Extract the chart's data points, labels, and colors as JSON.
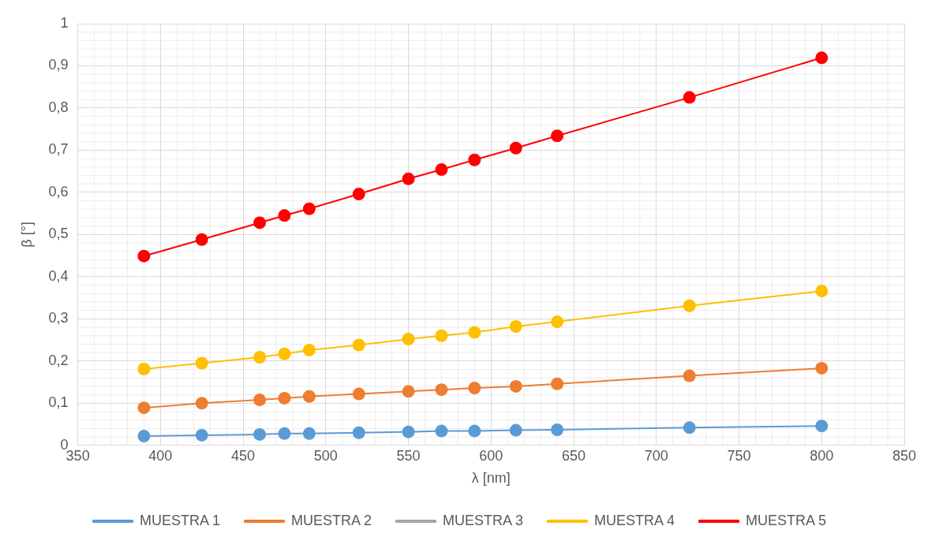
{
  "chart_data": {
    "type": "line",
    "xlabel": "λ [nm]",
    "ylabel": "β [°]",
    "x": [
      390,
      425,
      460,
      475,
      490,
      520,
      550,
      570,
      590,
      615,
      640,
      720,
      800
    ],
    "series": [
      {
        "name": "MUESTRA 1",
        "color": "#5b9bd5",
        "values": [
          0.022,
          0.024,
          0.026,
          0.028,
          0.028,
          0.03,
          0.032,
          0.034,
          0.034,
          0.036,
          0.037,
          0.042,
          0.046
        ]
      },
      {
        "name": "MUESTRA 2",
        "color": "#ed7d31",
        "values": [
          0.089,
          0.1,
          0.108,
          0.112,
          0.116,
          0.122,
          0.128,
          0.132,
          0.136,
          0.14,
          0.146,
          0.165,
          0.183
        ]
      },
      {
        "name": "MUESTRA 3",
        "color": "#a5a5a5",
        "values": [
          null,
          null,
          null,
          null,
          null,
          null,
          null,
          null,
          null,
          null,
          null,
          null,
          null
        ]
      },
      {
        "name": "MUESTRA 4",
        "color": "#ffc000",
        "values": [
          0.181,
          0.195,
          0.209,
          0.217,
          0.226,
          0.238,
          0.252,
          0.26,
          0.268,
          0.282,
          0.293,
          0.331,
          0.366
        ]
      },
      {
        "name": "MUESTRA 5",
        "color": "#ff0000",
        "values": [
          0.449,
          0.488,
          0.528,
          0.545,
          0.561,
          0.596,
          0.632,
          0.654,
          0.677,
          0.705,
          0.734,
          0.825,
          0.919
        ]
      }
    ],
    "xlim": [
      350,
      850
    ],
    "xticks": [
      350,
      400,
      450,
      500,
      550,
      600,
      650,
      700,
      750,
      800,
      850
    ],
    "ylim": [
      0,
      1
    ],
    "yticks": [
      0,
      {
        "value": 0.1,
        "label": "0,1"
      },
      {
        "value": 0.2,
        "label": "0,2"
      },
      {
        "value": 0.3,
        "label": "0,3"
      },
      {
        "value": 0.4,
        "label": "0,4"
      },
      {
        "value": 0.5,
        "label": "0,5"
      },
      {
        "value": 0.6,
        "label": "0,6"
      },
      {
        "value": 0.7,
        "label": "0,7"
      },
      {
        "value": 0.8,
        "label": "0,8"
      },
      {
        "value": 0.9,
        "label": "0,9"
      },
      1
    ],
    "grid": true,
    "legend": "bottom",
    "marker": "circle",
    "line_style": "solid"
  }
}
